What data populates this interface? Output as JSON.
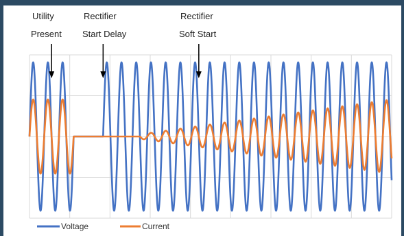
{
  "chart_data": {
    "type": "line",
    "title": "",
    "xlabel": "",
    "ylabel": "",
    "x_range": [
      0,
      24.6
    ],
    "ylim": [
      -1.1,
      1.1
    ],
    "grid": true,
    "legend_position": "bottom-left",
    "annotations": [
      {
        "lines": [
          "Utility",
          "Present"
        ],
        "x": 1.5
      },
      {
        "lines": [
          "Rectifier",
          "Start Delay"
        ],
        "x": 5.0
      },
      {
        "lines": [
          "Rectifier",
          "Soft Start"
        ],
        "x": 11.5
      }
    ],
    "series": [
      {
        "name": "Voltage",
        "color": "#4472c4",
        "segments": [
          {
            "x_start": 0,
            "x_end": 3.0,
            "amplitude": 1.0
          },
          {
            "x_start": 3.0,
            "x_end": 5.0,
            "amplitude": 0
          },
          {
            "x_start": 5.0,
            "x_end": 24.6,
            "amplitude": 1.0
          }
        ]
      },
      {
        "name": "Current",
        "color": "#ed7d31",
        "segments": [
          {
            "x_start": 0,
            "x_end": 3.0,
            "amplitude_start": 0.5,
            "amplitude_end": 0.5
          },
          {
            "x_start": 3.0,
            "x_end": 7.5,
            "amplitude_start": 0,
            "amplitude_end": 0
          },
          {
            "x_start": 7.5,
            "x_end": 24.6,
            "amplitude_start": 0.03,
            "amplitude_end": 0.5
          }
        ]
      }
    ]
  },
  "legend": {
    "voltage_label": "Voltage",
    "current_label": "Current"
  },
  "annotations": {
    "a1_line1": "Utility",
    "a1_line2": "Present",
    "a2_line1": "Rectifier",
    "a2_line2": "Start Delay",
    "a3_line1": "Rectifier",
    "a3_line2": "Soft Start"
  }
}
